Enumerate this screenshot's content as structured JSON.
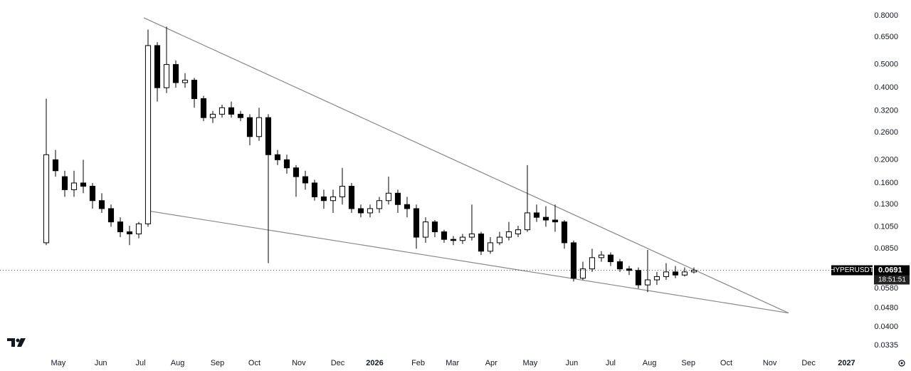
{
  "chart_data": {
    "type": "candlestick",
    "symbol": "HYPERUSDT",
    "countdown": "18:51:51",
    "last_price": 0.0691,
    "log_scale": true,
    "grid": false,
    "up_color": "#ffffff",
    "down_color": "#000000",
    "border_color": "#000000",
    "open": [
      0.09,
      0.2,
      0.17,
      0.15,
      0.16,
      0.155,
      0.135,
      0.125,
      0.11,
      0.1,
      0.098,
      0.108,
      0.6,
      0.4,
      0.5,
      0.42,
      0.43,
      0.36,
      0.3,
      0.31,
      0.33,
      0.31,
      0.3,
      0.25,
      0.3,
      0.21,
      0.2,
      0.185,
      0.17,
      0.16,
      0.14,
      0.135,
      0.14,
      0.155,
      0.125,
      0.12,
      0.125,
      0.135,
      0.145,
      0.13,
      0.125,
      0.095,
      0.11,
      0.1,
      0.093,
      0.092,
      0.095,
      0.098,
      0.083,
      0.09,
      0.095,
      0.098,
      0.102,
      0.12,
      0.115,
      0.112,
      0.11,
      0.09,
      0.064,
      0.07,
      0.078,
      0.08,
      0.075,
      0.07,
      0.069,
      0.06,
      0.063,
      0.065,
      0.068,
      0.066,
      0.068
    ],
    "high": [
      0.36,
      0.22,
      0.18,
      0.18,
      0.2,
      0.16,
      0.145,
      0.13,
      0.115,
      0.106,
      0.11,
      0.7,
      0.62,
      0.72,
      0.52,
      0.46,
      0.44,
      0.37,
      0.32,
      0.34,
      0.35,
      0.32,
      0.31,
      0.33,
      0.31,
      0.22,
      0.21,
      0.19,
      0.18,
      0.165,
      0.15,
      0.15,
      0.185,
      0.16,
      0.13,
      0.13,
      0.14,
      0.17,
      0.15,
      0.14,
      0.13,
      0.115,
      0.112,
      0.102,
      0.096,
      0.098,
      0.13,
      0.1,
      0.095,
      0.1,
      0.11,
      0.106,
      0.19,
      0.13,
      0.128,
      0.13,
      0.112,
      0.092,
      0.075,
      0.085,
      0.083,
      0.082,
      0.077,
      0.072,
      0.071,
      0.084,
      0.068,
      0.074,
      0.072,
      0.071,
      0.071
    ],
    "low": [
      0.088,
      0.17,
      0.14,
      0.14,
      0.145,
      0.125,
      0.12,
      0.105,
      0.095,
      0.088,
      0.094,
      0.105,
      0.35,
      0.38,
      0.4,
      0.4,
      0.33,
      0.29,
      0.285,
      0.3,
      0.3,
      0.29,
      0.23,
      0.24,
      0.074,
      0.19,
      0.175,
      0.14,
      0.15,
      0.135,
      0.125,
      0.12,
      0.13,
      0.12,
      0.115,
      0.115,
      0.12,
      0.13,
      0.12,
      0.115,
      0.085,
      0.09,
      0.095,
      0.09,
      0.088,
      0.089,
      0.092,
      0.08,
      0.081,
      0.088,
      0.092,
      0.095,
      0.1,
      0.11,
      0.105,
      0.1,
      0.085,
      0.062,
      0.063,
      0.068,
      0.075,
      0.072,
      0.068,
      0.066,
      0.058,
      0.056,
      0.06,
      0.063,
      0.064,
      0.065,
      0.067
    ],
    "close": [
      0.21,
      0.18,
      0.15,
      0.16,
      0.155,
      0.135,
      0.125,
      0.11,
      0.1,
      0.098,
      0.108,
      0.6,
      0.4,
      0.5,
      0.42,
      0.43,
      0.36,
      0.3,
      0.31,
      0.33,
      0.31,
      0.3,
      0.25,
      0.3,
      0.21,
      0.2,
      0.185,
      0.17,
      0.16,
      0.14,
      0.135,
      0.14,
      0.155,
      0.125,
      0.12,
      0.125,
      0.135,
      0.145,
      0.13,
      0.125,
      0.095,
      0.11,
      0.1,
      0.093,
      0.092,
      0.095,
      0.098,
      0.083,
      0.09,
      0.095,
      0.1,
      0.102,
      0.12,
      0.115,
      0.112,
      0.11,
      0.09,
      0.064,
      0.07,
      0.078,
      0.08,
      0.075,
      0.07,
      0.069,
      0.06,
      0.063,
      0.065,
      0.068,
      0.066,
      0.068,
      0.0691
    ],
    "trendlines": [
      {
        "color": "#888888",
        "points": [
          [
            10.54,
            0.784
          ],
          [
            80.23,
            0.0458
          ]
        ]
      },
      {
        "color": "#888888",
        "points": [
          [
            10.92,
            0.1225
          ],
          [
            80.23,
            0.0458
          ]
        ]
      }
    ],
    "xlim": [
      -5,
      88.85
    ],
    "ylim": [
      0.0309,
      0.93
    ],
    "xticks": [
      {
        "value": 1.3,
        "label": "May"
      },
      {
        "value": 5.9,
        "label": "Jun"
      },
      {
        "value": 10.2,
        "label": "Jul"
      },
      {
        "value": 14.2,
        "label": "Aug"
      },
      {
        "value": 18.5,
        "label": "Sep"
      },
      {
        "value": 22.5,
        "label": "Oct"
      },
      {
        "value": 27.3,
        "label": "Nov"
      },
      {
        "value": 31.5,
        "label": "Dec"
      },
      {
        "value": 35.5,
        "label": "2026"
      },
      {
        "value": 40.2,
        "label": "Feb"
      },
      {
        "value": 43.9,
        "label": "Mar"
      },
      {
        "value": 48.1,
        "label": "Apr"
      },
      {
        "value": 52.3,
        "label": "May"
      },
      {
        "value": 56.8,
        "label": "Jun"
      },
      {
        "value": 61.0,
        "label": "Jul"
      },
      {
        "value": 65.2,
        "label": "Aug"
      },
      {
        "value": 69.4,
        "label": "Sep"
      },
      {
        "value": 73.5,
        "label": "Oct"
      },
      {
        "value": 78.2,
        "label": "Nov"
      },
      {
        "value": 82.4,
        "label": "Dec"
      },
      {
        "value": 86.5,
        "label": "2027"
      }
    ],
    "yticks": [
      {
        "value": 0.8,
        "label": "0.8000"
      },
      {
        "value": 0.65,
        "label": "0.6500"
      },
      {
        "value": 0.5,
        "label": "0.5000"
      },
      {
        "value": 0.4,
        "label": "0.4000"
      },
      {
        "value": 0.32,
        "label": "0.3200"
      },
      {
        "value": 0.26,
        "label": "0.2600"
      },
      {
        "value": 0.2,
        "label": "0.2000"
      },
      {
        "value": 0.16,
        "label": "0.1600"
      },
      {
        "value": 0.13,
        "label": "0.1300"
      },
      {
        "value": 0.105,
        "label": "0.1050"
      },
      {
        "value": 0.085,
        "label": "0.0850"
      },
      {
        "value": 0.058,
        "label": "0.0580"
      },
      {
        "value": 0.048,
        "label": "0.0480"
      },
      {
        "value": 0.04,
        "label": "0.0400"
      },
      {
        "value": 0.0335,
        "label": "0.0335"
      }
    ]
  }
}
